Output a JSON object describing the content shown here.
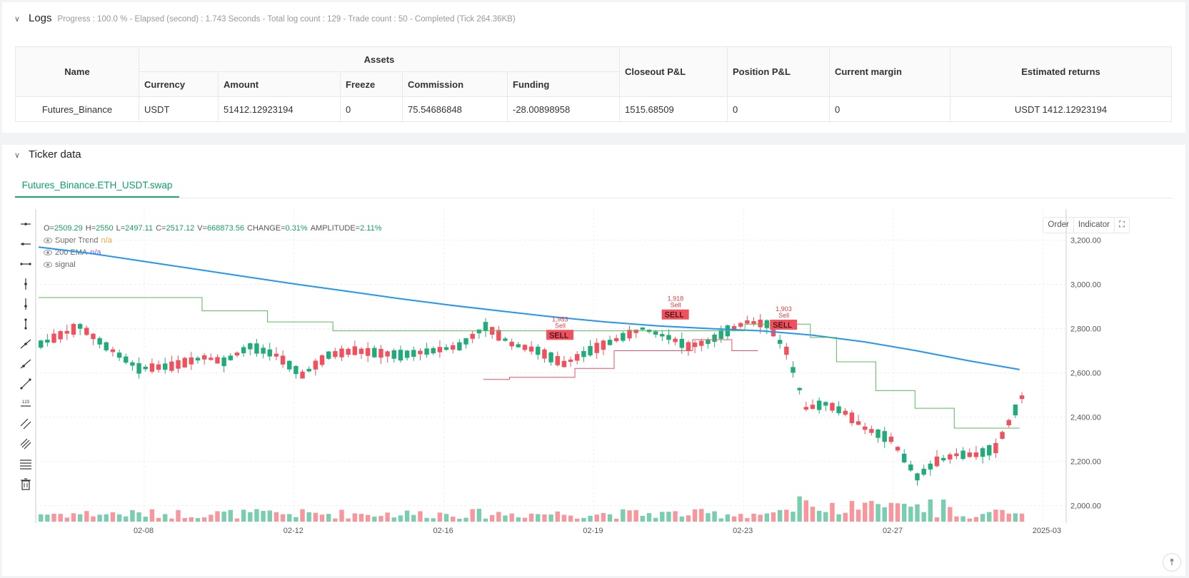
{
  "logs": {
    "title": "Logs",
    "status": "Progress : 100.0 % - Elapsed (second) : 1.743  Seconds - Total log count : 129 - Trade count : 50 - Completed (Tick 264.36KB)"
  },
  "assets_table": {
    "headers": {
      "name": "Name",
      "assets": "Assets",
      "currency": "Currency",
      "amount": "Amount",
      "freeze": "Freeze",
      "commission": "Commission",
      "funding": "Funding",
      "closeout_pl": "Closeout P&L",
      "position_pl": "Position P&L",
      "current_margin": "Current margin",
      "estimated_returns": "Estimated returns"
    },
    "row": {
      "name": "Futures_Binance",
      "currency": "USDT",
      "amount": "51412.12923194",
      "freeze": "0",
      "commission": "75.54686848",
      "funding": "-28.00898958",
      "closeout_pl": "1515.68509",
      "position_pl": "0",
      "current_margin": "0",
      "estimated_returns": "USDT 1412.12923194"
    }
  },
  "ticker": {
    "title": "Ticker data",
    "tab": "Futures_Binance.ETH_USDT.swap",
    "ohlc": {
      "o_label": "O=",
      "o": "2509.29",
      "h_label": "H=",
      "h": "2550",
      "l_label": "L=",
      "l": "2497.11",
      "c_label": "C=",
      "c": "2517.12",
      "v_label": "V=",
      "v": "668873.56",
      "change_label": "CHANGE=",
      "change": "0.31%",
      "amp_label": "AMPLITUDE=",
      "amp": "2.11%"
    },
    "legend": [
      {
        "name": "Super Trend",
        "value": "n/a",
        "color": "#f0a030"
      },
      {
        "name": "200 EMA",
        "value": "n/a",
        "color": "#9c4fd6"
      },
      {
        "name": "signal",
        "value": "",
        "color": "#666666"
      }
    ],
    "buttons": {
      "order": "Order",
      "indicator": "Indicator"
    }
  },
  "chart_data": {
    "type": "candlestick",
    "x_ticks": [
      "02-08",
      "02-12",
      "02-16",
      "02-19",
      "02-23",
      "02-27",
      "2025-03"
    ],
    "y_ticks": [
      "3,200.00",
      "3,000.00",
      "2,800.00",
      "2,600.00",
      "2,400.00",
      "2,200.00",
      "2,000.00"
    ],
    "ylim": [
      1960,
      3340
    ],
    "colors": {
      "up": "#22ab7a",
      "down": "#f0515d",
      "ema": "#2196f3",
      "st_up": "#5cb85c",
      "st_down": "#f0515d"
    },
    "ema_200": [
      3168,
      3140,
      3105,
      3070,
      3035,
      3000,
      2968,
      2935,
      2905,
      2878,
      2852,
      2830,
      2812,
      2800,
      2790,
      2770,
      2740,
      2700,
      2655,
      2615
    ],
    "signals": [
      {
        "label": "SELL",
        "price": "1,953",
        "sub": "Sell",
        "x_frac": 0.508,
        "price_level": 2762
      },
      {
        "label": "SELL",
        "price": "1,918",
        "sub": "Sell",
        "x_frac": 0.62,
        "price_level": 2854
      },
      {
        "label": "SELL",
        "price": "1,903",
        "sub": "Sell",
        "x_frac": 0.725,
        "price_level": 2808
      }
    ]
  }
}
